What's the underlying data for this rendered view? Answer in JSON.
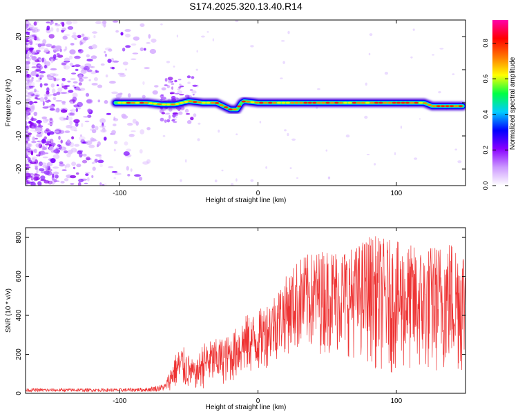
{
  "title": "S174.2025.320.13.40.R14",
  "chart_data": [
    {
      "type": "heatmap",
      "xlabel": "Height of straight line (km)",
      "ylabel": "Frequency (Hz)",
      "xlim": [
        -168,
        150
      ],
      "ylim": [
        -25,
        25
      ],
      "xticks": [
        -100,
        0,
        100
      ],
      "yticks": [
        -20,
        -10,
        0,
        10,
        20
      ],
      "colorbar": {
        "label": "Normalized spectral amplitude",
        "range": [
          0,
          0.93
        ],
        "ticks": [
          0.0,
          0.2,
          0.4,
          0.6,
          0.8
        ],
        "colors": [
          "#ffffff",
          "#cc99ff",
          "#8800ff",
          "#0000ff",
          "#00ccff",
          "#00ff44",
          "#ffff00",
          "#ff7700",
          "#ff0000",
          "#ff00aa"
        ]
      },
      "ridge": {
        "description": "strong narrow-band signal starting near x=-103 km",
        "x": [
          -103,
          -90,
          -80,
          -70,
          -60,
          -50,
          -40,
          -30,
          -20,
          -15,
          -12,
          -10,
          0,
          20,
          40,
          60,
          80,
          100,
          120,
          126,
          140,
          148
        ],
        "freq": [
          0,
          0,
          0,
          -0.5,
          -0.5,
          0.5,
          0,
          0,
          -2,
          -2,
          0,
          0.5,
          0,
          0,
          0,
          0,
          0,
          0,
          0,
          -1,
          -1,
          -1
        ]
      }
    },
    {
      "type": "line",
      "xlabel": "Height of straight line (km)",
      "ylabel": "SNR (10 * v/v)",
      "xlim": [
        -168,
        150
      ],
      "ylim": [
        0,
        850
      ],
      "xticks": [
        -100,
        0,
        100
      ],
      "yticks": [
        0,
        200,
        400,
        600,
        800
      ],
      "color": "#ee3333",
      "envelope": {
        "x": [
          -168,
          -130,
          -100,
          -80,
          -67,
          -60,
          -55,
          -50,
          -45,
          -40,
          -35,
          -20,
          -10,
          0,
          10,
          20,
          30,
          50,
          70,
          80,
          90,
          100,
          120,
          140,
          150
        ],
        "upper": [
          25,
          25,
          25,
          30,
          50,
          200,
          250,
          200,
          150,
          260,
          270,
          300,
          400,
          420,
          500,
          600,
          700,
          750,
          750,
          820,
          800,
          780,
          750,
          800,
          780
        ],
        "lower": [
          8,
          8,
          8,
          8,
          10,
          20,
          15,
          15,
          20,
          20,
          30,
          50,
          80,
          100,
          150,
          200,
          200,
          200,
          180,
          150,
          100,
          100,
          80,
          100,
          80
        ]
      }
    }
  ]
}
